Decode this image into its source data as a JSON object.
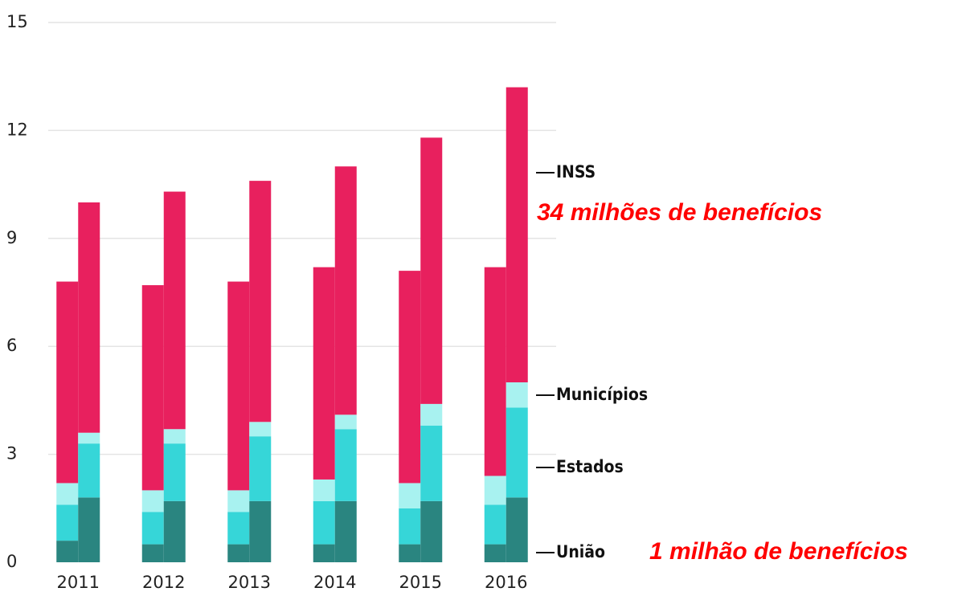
{
  "chart_data": {
    "type": "grouped-stacked-bar",
    "categories": [
      "2011",
      "2012",
      "2013",
      "2014",
      "2015",
      "2016"
    ],
    "series": [
      {
        "name": "União",
        "color": "#2a8580",
        "values": [
          [
            0.6,
            1.8
          ],
          [
            0.5,
            1.7
          ],
          [
            0.5,
            1.7
          ],
          [
            0.5,
            1.7
          ],
          [
            0.5,
            1.7
          ],
          [
            0.5,
            1.8
          ]
        ]
      },
      {
        "name": "Estados",
        "color": "#36d6d8",
        "values": [
          [
            1.0,
            1.5
          ],
          [
            0.9,
            1.6
          ],
          [
            0.9,
            1.8
          ],
          [
            1.2,
            2.0
          ],
          [
            1.0,
            2.1
          ],
          [
            1.1,
            2.5
          ]
        ]
      },
      {
        "name": "Municípios",
        "color": "#a8f2f0",
        "values": [
          [
            0.6,
            0.3
          ],
          [
            0.6,
            0.4
          ],
          [
            0.6,
            0.4
          ],
          [
            0.6,
            0.4
          ],
          [
            0.7,
            0.6
          ],
          [
            0.8,
            0.7
          ]
        ]
      },
      {
        "name": "INSS",
        "color": "#e8205e",
        "values": [
          [
            5.6,
            6.4
          ],
          [
            5.7,
            6.6
          ],
          [
            5.8,
            6.7
          ],
          [
            5.9,
            6.9
          ],
          [
            5.9,
            7.4
          ],
          [
            5.8,
            8.2
          ]
        ]
      }
    ],
    "ylim": [
      0,
      15
    ],
    "yticks": [
      0,
      3,
      6,
      9,
      12,
      15
    ],
    "grid": true,
    "annotations": [
      "34 milhões de benefícios",
      "1 milhão de benefícios"
    ]
  }
}
